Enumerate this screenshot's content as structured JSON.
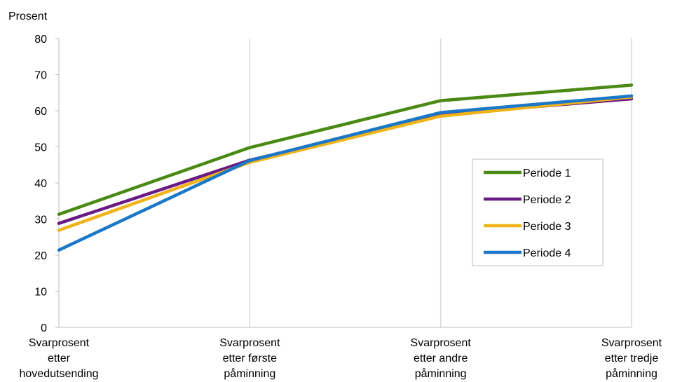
{
  "chart_data": {
    "type": "line",
    "ylabel": "Prosent",
    "ylim": [
      0,
      80
    ],
    "yticks": [
      "0",
      "10",
      "20",
      "30",
      "40",
      "50",
      "60",
      "70",
      "80"
    ],
    "categories": [
      [
        "Svarprosent",
        "etter",
        "hovedutsending"
      ],
      [
        "Svarprosent",
        "etter første",
        "påminning"
      ],
      [
        "Svarprosent",
        "etter andre",
        "påminning"
      ],
      [
        "Svarprosent",
        "etter tredje",
        "påminning"
      ]
    ],
    "series": [
      {
        "name": "Periode 1",
        "values": [
          31.3,
          49.8,
          62.8,
          67.1
        ],
        "color": "#4a8a14"
      },
      {
        "name": "Periode 2",
        "values": [
          28.8,
          46.3,
          59.0,
          63.3
        ],
        "color": "#6a1a84"
      },
      {
        "name": "Periode 3",
        "values": [
          26.9,
          45.7,
          58.5,
          63.8
        ],
        "color": "#f0b31a"
      },
      {
        "name": "Periode 4",
        "values": [
          21.4,
          46.2,
          59.5,
          64.1
        ],
        "color": "#1a78c8"
      }
    ],
    "grid": "vertical",
    "legend_position": "right"
  }
}
